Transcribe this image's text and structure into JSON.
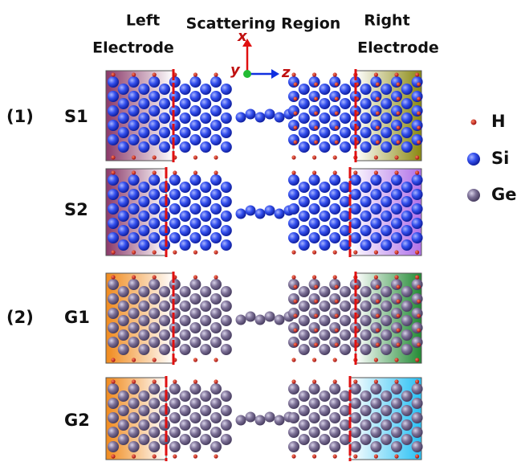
{
  "header": {
    "left_electrode": [
      "Left",
      "Electrode"
    ],
    "scattering_region": "Scattering Region",
    "right_electrode": [
      "Right",
      "Electrode"
    ]
  },
  "axes": {
    "x": "x",
    "y": "y",
    "z": "z"
  },
  "groups": [
    {
      "label": "(1)",
      "rows": [
        "S1",
        "S2"
      ]
    },
    {
      "label": "(2)",
      "rows": [
        "G1",
        "G2"
      ]
    }
  ],
  "legend": [
    {
      "label": "H"
    },
    {
      "label": "Si"
    },
    {
      "label": "Ge"
    }
  ]
}
